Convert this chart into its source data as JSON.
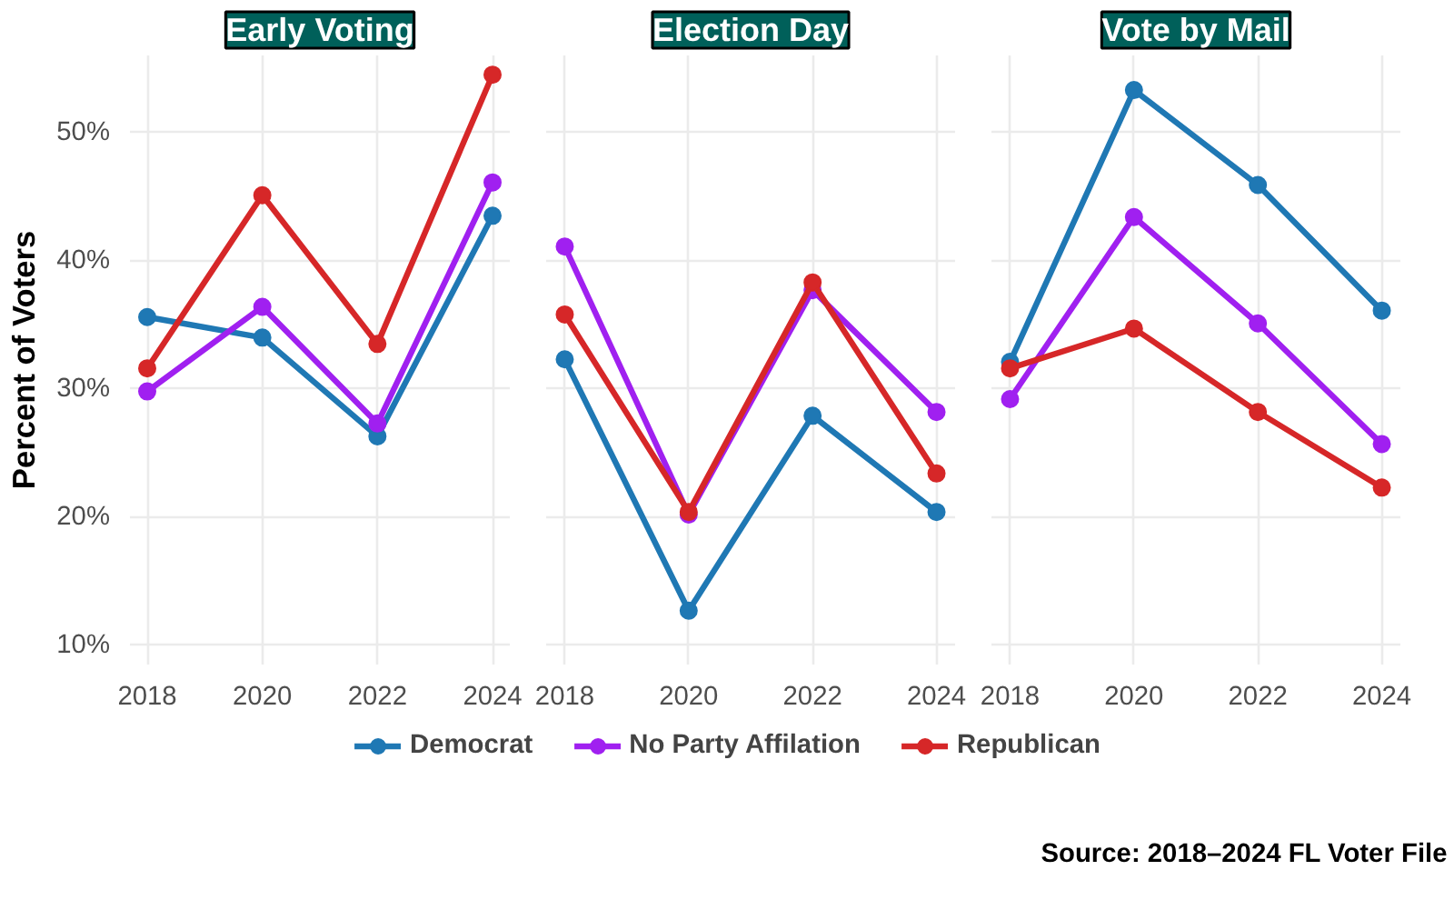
{
  "chart_data": [
    {
      "type": "line",
      "title": "Early Voting",
      "ylabel": "Percent of Voters",
      "x": [
        2018,
        2020,
        2022,
        2024
      ],
      "xlim": [
        2017.7,
        2024.3
      ],
      "xticks": [
        2018,
        2020,
        2022,
        2024
      ],
      "ylim": [
        8.5,
        56
      ],
      "yticks": [
        {
          "value": 10,
          "label": "10%"
        },
        {
          "value": 20,
          "label": "20%"
        },
        {
          "value": 30,
          "label": "30%"
        },
        {
          "value": 40,
          "label": "40%"
        },
        {
          "value": 50,
          "label": "50%"
        }
      ],
      "grid": true,
      "marker": "circle",
      "series": [
        {
          "color": "#1f78b4",
          "values": [
            35.6,
            34.0,
            26.3,
            43.5
          ]
        },
        {
          "color": "#a020f0",
          "values": [
            29.8,
            36.4,
            27.3,
            46.1
          ]
        },
        {
          "color": "#d62728",
          "values": [
            31.6,
            45.1,
            33.5,
            54.5
          ]
        }
      ]
    },
    {
      "type": "line",
      "title": "Election Day",
      "x": [
        2018,
        2020,
        2022,
        2024
      ],
      "xlim": [
        2017.7,
        2024.3
      ],
      "xticks": [
        2018,
        2020,
        2022,
        2024
      ],
      "ylim": [
        8.5,
        56
      ],
      "yticks": [
        10,
        20,
        30,
        40,
        50
      ],
      "tick_labels": "x",
      "grid": true,
      "marker": "circle",
      "legend": "bottom",
      "series": [
        {
          "name": "Democrat",
          "color": "#1f78b4",
          "values": [
            32.3,
            12.7,
            27.9,
            20.4
          ]
        },
        {
          "name": "No Party Affilation",
          "color": "#a020f0",
          "values": [
            41.1,
            20.2,
            37.7,
            28.2
          ]
        },
        {
          "name": "Republican",
          "color": "#d62728",
          "values": [
            35.8,
            20.4,
            38.3,
            23.4
          ]
        }
      ]
    },
    {
      "type": "line",
      "title": "Vote by Mail",
      "x": [
        2018,
        2020,
        2022,
        2024
      ],
      "xlim": [
        2017.7,
        2024.3
      ],
      "xticks": [
        2018,
        2020,
        2022,
        2024
      ],
      "ylim": [
        8.5,
        56
      ],
      "yticks": [
        10,
        20,
        30,
        40,
        50
      ],
      "tick_labels": "x",
      "grid": true,
      "marker": "circle",
      "annotations": [
        "Source: 2018–2024 FL Voter File"
      ],
      "series": [
        {
          "color": "#1f78b4",
          "values": [
            32.1,
            53.3,
            45.9,
            36.1
          ]
        },
        {
          "color": "#a020f0",
          "values": [
            29.2,
            43.4,
            35.1,
            25.7
          ]
        },
        {
          "color": "#d62728",
          "values": [
            31.6,
            34.7,
            28.2,
            22.3
          ]
        }
      ]
    }
  ]
}
